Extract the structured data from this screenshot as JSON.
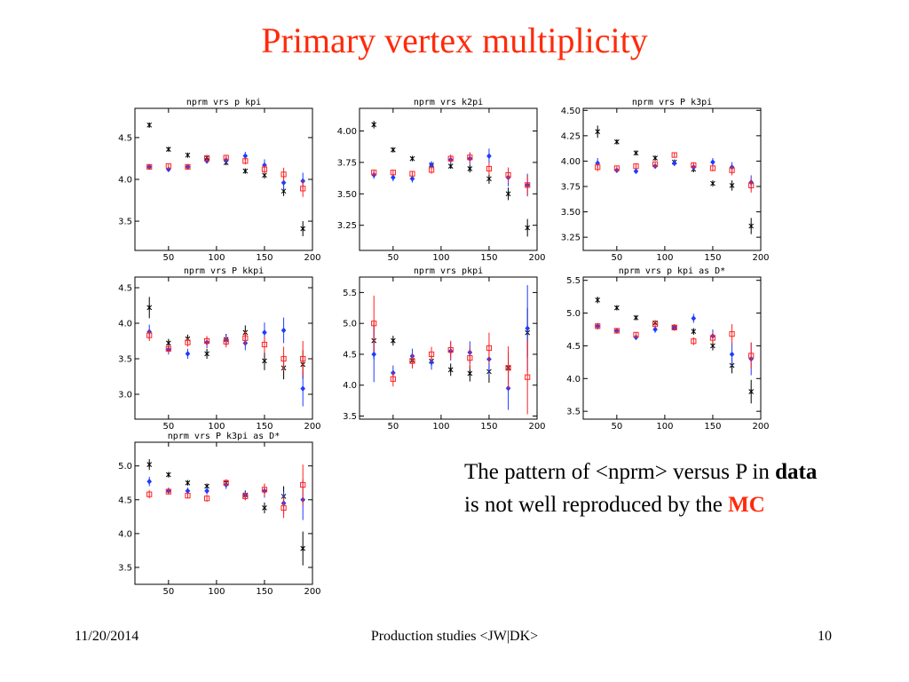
{
  "slide": {
    "title": "Primary vertex multiplicity",
    "caption": {
      "part1": "The pattern of <nprm> versus P in ",
      "bold": "data",
      "part2": " is not well reproduced by the ",
      "mc": "MC"
    },
    "footer": {
      "date": "11/20/2014",
      "center": "Production studies <JW|DK>",
      "page": "10"
    }
  },
  "chart_data": [
    {
      "type": "scatter",
      "title": "nprm vrs p kpi",
      "x": [
        30,
        50,
        70,
        90,
        110,
        130,
        150,
        170,
        190
      ],
      "xlim": [
        15,
        200
      ],
      "ylim": [
        3.15,
        4.85
      ],
      "xticks": [
        50,
        100,
        150,
        200
      ],
      "yticks": [
        3.5,
        4.0,
        4.5
      ],
      "ytick_labels": [
        "3.5",
        "4.0",
        "4.5"
      ],
      "series": [
        {
          "marker": "star",
          "values": [
            4.65,
            4.36,
            4.29,
            4.26,
            4.2,
            4.1,
            4.05,
            3.86,
            3.41
          ],
          "errors": [
            0.03,
            0.02,
            0.02,
            0.02,
            0.02,
            0.03,
            0.04,
            0.06,
            0.09
          ]
        },
        {
          "marker": "diamond",
          "values": [
            4.15,
            4.12,
            4.15,
            4.22,
            4.23,
            4.28,
            4.17,
            3.96,
            3.98
          ],
          "errors": [
            0.02,
            0.02,
            0.02,
            0.03,
            0.04,
            0.05,
            0.07,
            0.09,
            0.1
          ]
        },
        {
          "marker": "square",
          "values": [
            4.15,
            4.16,
            4.15,
            4.25,
            4.26,
            4.22,
            4.12,
            4.06,
            3.89
          ],
          "errors": [
            0.02,
            0.02,
            0.02,
            0.03,
            0.03,
            0.04,
            0.05,
            0.08,
            0.1
          ]
        }
      ]
    },
    {
      "type": "scatter",
      "title": "nprm vrs k2pi",
      "x": [
        30,
        50,
        70,
        90,
        110,
        130,
        150,
        170,
        190
      ],
      "xlim": [
        15,
        200
      ],
      "ylim": [
        3.05,
        4.18
      ],
      "xticks": [
        50,
        100,
        150,
        200
      ],
      "yticks": [
        3.25,
        3.5,
        3.75,
        4.0
      ],
      "ytick_labels": [
        "3.25",
        "3.50",
        "3.75",
        "4.00"
      ],
      "series": [
        {
          "marker": "star",
          "values": [
            4.05,
            3.85,
            3.78,
            3.73,
            3.72,
            3.7,
            3.62,
            3.5,
            3.23
          ],
          "errors": [
            0.03,
            0.02,
            0.02,
            0.02,
            0.02,
            0.03,
            0.04,
            0.05,
            0.07
          ]
        },
        {
          "marker": "diamond",
          "values": [
            3.65,
            3.63,
            3.62,
            3.73,
            3.77,
            3.78,
            3.8,
            3.63,
            3.57
          ],
          "errors": [
            0.03,
            0.03,
            0.03,
            0.03,
            0.04,
            0.05,
            0.06,
            0.07,
            0.09
          ]
        },
        {
          "marker": "square",
          "values": [
            3.67,
            3.67,
            3.66,
            3.69,
            3.78,
            3.79,
            3.7,
            3.65,
            3.57
          ],
          "errors": [
            0.02,
            0.02,
            0.02,
            0.03,
            0.03,
            0.04,
            0.05,
            0.06,
            0.08
          ]
        }
      ]
    },
    {
      "type": "scatter",
      "title": "nprm vrs P k3pi",
      "x": [
        30,
        50,
        70,
        90,
        110,
        130,
        150,
        170,
        190
      ],
      "xlim": [
        15,
        200
      ],
      "ylim": [
        3.12,
        4.52
      ],
      "xticks": [
        50,
        100,
        150,
        200
      ],
      "yticks": [
        3.25,
        3.5,
        3.75,
        4.0,
        4.25,
        4.5
      ],
      "ytick_labels": [
        "3.25",
        "3.50",
        "3.75",
        "4.00",
        "4.25",
        "4.50"
      ],
      "series": [
        {
          "marker": "star",
          "values": [
            4.29,
            4.19,
            4.08,
            4.03,
            3.99,
            3.92,
            3.78,
            3.76,
            3.36
          ],
          "errors": [
            0.06,
            0.02,
            0.02,
            0.02,
            0.02,
            0.03,
            0.03,
            0.05,
            0.08
          ]
        },
        {
          "marker": "diamond",
          "values": [
            3.98,
            3.91,
            3.9,
            3.95,
            3.98,
            3.94,
            3.99,
            3.94,
            3.79
          ],
          "errors": [
            0.05,
            0.02,
            0.02,
            0.02,
            0.03,
            0.03,
            0.04,
            0.05,
            0.07
          ]
        },
        {
          "marker": "square",
          "values": [
            3.94,
            3.93,
            3.95,
            3.97,
            4.06,
            3.96,
            3.93,
            3.91,
            3.76
          ],
          "errors": [
            0.04,
            0.02,
            0.02,
            0.02,
            0.02,
            0.03,
            0.03,
            0.05,
            0.07
          ]
        }
      ]
    },
    {
      "type": "scatter",
      "title": "nprm vrs P kkpi",
      "x": [
        30,
        50,
        70,
        90,
        110,
        130,
        150,
        170,
        190
      ],
      "xlim": [
        15,
        200
      ],
      "ylim": [
        2.65,
        4.65
      ],
      "xticks": [
        50,
        100,
        150,
        200
      ],
      "yticks": [
        3.0,
        3.5,
        4.0,
        4.5
      ],
      "ytick_labels": [
        "3.0",
        "3.5",
        "4.0",
        "4.5"
      ],
      "series": [
        {
          "marker": "star",
          "values": [
            4.22,
            3.72,
            3.78,
            3.57,
            3.77,
            3.87,
            3.47,
            3.37,
            3.42
          ],
          "errors": [
            0.15,
            0.06,
            0.06,
            0.07,
            0.08,
            0.1,
            0.13,
            0.16,
            0.2
          ]
        },
        {
          "marker": "diamond",
          "values": [
            3.88,
            3.63,
            3.57,
            3.73,
            3.77,
            3.72,
            3.87,
            3.9,
            3.08
          ],
          "errors": [
            0.1,
            0.07,
            0.07,
            0.08,
            0.08,
            0.1,
            0.14,
            0.18,
            0.25
          ]
        },
        {
          "marker": "square",
          "values": [
            3.83,
            3.64,
            3.73,
            3.75,
            3.74,
            3.79,
            3.7,
            3.5,
            3.5
          ],
          "errors": [
            0.08,
            0.06,
            0.06,
            0.07,
            0.08,
            0.1,
            0.12,
            0.17,
            0.25
          ]
        }
      ]
    },
    {
      "type": "scatter",
      "title": "nprm vrs pkpi",
      "x": [
        30,
        50,
        70,
        90,
        110,
        130,
        150,
        170,
        190
      ],
      "xlim": [
        15,
        200
      ],
      "ylim": [
        3.45,
        5.75
      ],
      "xticks": [
        50,
        100,
        150,
        200
      ],
      "yticks": [
        3.5,
        4.0,
        4.5,
        5.0,
        5.5
      ],
      "ytick_labels": [
        "3.5",
        "4.0",
        "4.5",
        "5.0",
        "5.5"
      ],
      "series": [
        {
          "marker": "star",
          "values": [
            4.72,
            4.72,
            4.4,
            4.39,
            4.25,
            4.19,
            4.22,
            4.28,
            4.85
          ],
          "errors": [
            0.3,
            0.08,
            0.07,
            0.08,
            0.1,
            0.13,
            0.18,
            0.25,
            0.4
          ]
        },
        {
          "marker": "diamond",
          "values": [
            4.5,
            4.2,
            4.47,
            4.37,
            4.55,
            4.53,
            4.42,
            3.95,
            4.92
          ],
          "errors": [
            0.45,
            0.12,
            0.12,
            0.12,
            0.15,
            0.18,
            0.25,
            0.35,
            0.7
          ]
        },
        {
          "marker": "square",
          "values": [
            5.0,
            4.1,
            4.39,
            4.5,
            4.57,
            4.44,
            4.6,
            4.28,
            4.13
          ],
          "errors": [
            0.45,
            0.12,
            0.12,
            0.12,
            0.15,
            0.18,
            0.25,
            0.35,
            0.6
          ]
        }
      ]
    },
    {
      "type": "scatter",
      "title": "nprm vrs p kpi as D*",
      "x": [
        30,
        50,
        70,
        90,
        110,
        130,
        150,
        170,
        190
      ],
      "xlim": [
        15,
        200
      ],
      "ylim": [
        3.38,
        5.55
      ],
      "xticks": [
        50,
        100,
        150,
        200
      ],
      "yticks": [
        3.5,
        4.0,
        4.5,
        5.0,
        5.5
      ],
      "ytick_labels": [
        "3.5",
        "4.0",
        "4.5",
        "5.0",
        "5.5"
      ],
      "series": [
        {
          "marker": "star",
          "values": [
            5.2,
            5.08,
            4.93,
            4.85,
            4.78,
            4.72,
            4.5,
            4.2,
            3.8
          ],
          "errors": [
            0.05,
            0.03,
            0.03,
            0.03,
            0.04,
            0.05,
            0.07,
            0.12,
            0.18
          ]
        },
        {
          "marker": "diamond",
          "values": [
            4.8,
            4.73,
            4.63,
            4.75,
            4.78,
            4.92,
            4.65,
            4.37,
            4.3
          ],
          "errors": [
            0.05,
            0.04,
            0.04,
            0.05,
            0.05,
            0.07,
            0.1,
            0.18,
            0.25
          ]
        },
        {
          "marker": "square",
          "values": [
            4.8,
            4.73,
            4.67,
            4.83,
            4.78,
            4.57,
            4.62,
            4.68,
            4.35
          ],
          "errors": [
            0.04,
            0.03,
            0.04,
            0.04,
            0.05,
            0.06,
            0.08,
            0.15,
            0.2
          ]
        }
      ]
    },
    {
      "type": "scatter",
      "title": "nprm vrs P k3pi as D*",
      "x": [
        30,
        50,
        70,
        90,
        110,
        130,
        150,
        170,
        190
      ],
      "xlim": [
        15,
        200
      ],
      "ylim": [
        3.25,
        5.35
      ],
      "xticks": [
        50,
        100,
        150,
        200
      ],
      "yticks": [
        3.5,
        4.0,
        4.5,
        5.0
      ],
      "ytick_labels": [
        "3.5",
        "4.0",
        "4.5",
        "5.0"
      ],
      "series": [
        {
          "marker": "star",
          "values": [
            5.02,
            4.87,
            4.75,
            4.7,
            4.75,
            4.57,
            4.38,
            4.55,
            3.78
          ],
          "errors": [
            0.08,
            0.04,
            0.04,
            0.04,
            0.05,
            0.06,
            0.08,
            0.15,
            0.25
          ]
        },
        {
          "marker": "diamond",
          "values": [
            4.77,
            4.63,
            4.63,
            4.63,
            4.72,
            4.57,
            4.63,
            4.45,
            4.5
          ],
          "errors": [
            0.07,
            0.05,
            0.05,
            0.05,
            0.06,
            0.07,
            0.1,
            0.17,
            0.3
          ]
        },
        {
          "marker": "square",
          "values": [
            4.58,
            4.62,
            4.56,
            4.52,
            4.75,
            4.55,
            4.65,
            4.38,
            4.72
          ],
          "errors": [
            0.06,
            0.04,
            0.04,
            0.05,
            0.05,
            0.06,
            0.09,
            0.15,
            0.3
          ]
        }
      ]
    }
  ],
  "colors": {
    "title": "#ff2a0a",
    "data_marker": "#000000",
    "mc_blue": "#1f3cff",
    "mc_red": "#ff2020",
    "axis": "#000000",
    "caption_mc": "#ff2a0a"
  }
}
